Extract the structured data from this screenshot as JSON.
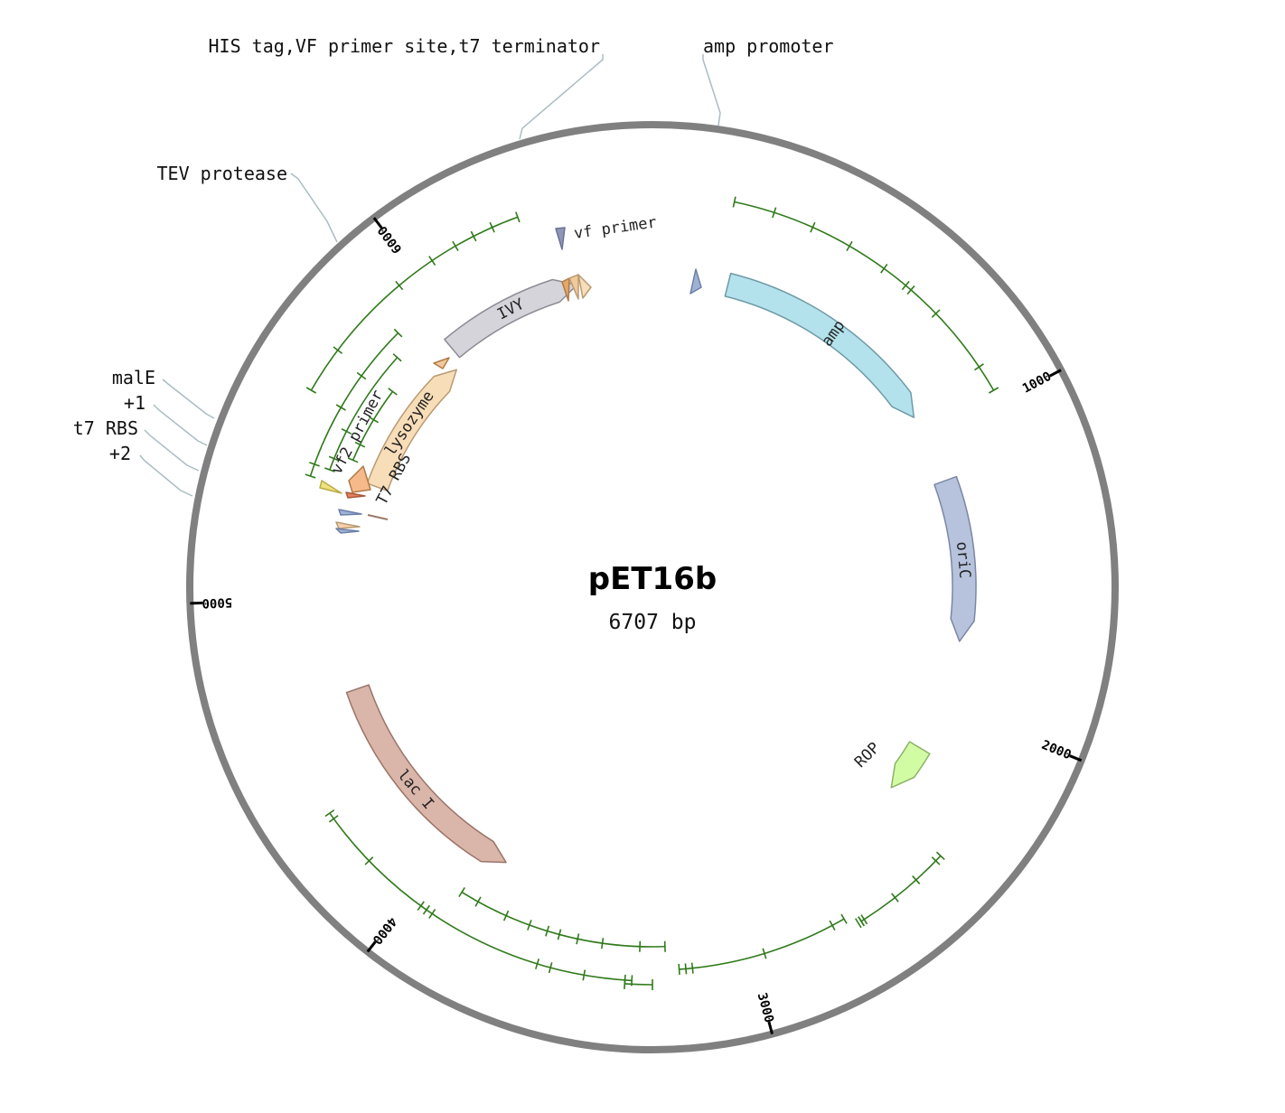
{
  "plasmid": {
    "name": "pET16b",
    "length_label": "6707 bp",
    "length": 6707
  },
  "colors": {
    "backbone": "#808080",
    "leader": "#aabdc2",
    "enzyme": "#2f7a1a",
    "amp": "#b3e2ec",
    "oriC": "#b7c3dc",
    "ROP": "#d2fca4",
    "lac_I": "#dab6aa",
    "IVY": "#d4d4da",
    "lysozyme": "#f7ddb8"
  },
  "ticks": [
    {
      "label": "1000",
      "angle": 62
    },
    {
      "label": "2000",
      "angle": 112
    },
    {
      "label": "3000",
      "angle": 165
    },
    {
      "label": "4000",
      "angle": 218
    },
    {
      "label": "5000",
      "angle": 268
    },
    {
      "label": "6000",
      "angle": 323
    }
  ],
  "external_labels": [
    {
      "text": "HIS tag,VF primer site,t7 terminator"
    },
    {
      "text": "amp promoter"
    },
    {
      "text": "TEV protease"
    },
    {
      "text": "malE"
    },
    {
      "text": "+1"
    },
    {
      "text": "t7 RBS"
    },
    {
      "text": "+2"
    }
  ],
  "features": [
    {
      "label": "amp",
      "color": "#b3e2ec",
      "stroke": "#6f9aa6",
      "a1": 14,
      "a2": 57,
      "dir": 1,
      "r_out": 358,
      "r_in": 332
    },
    {
      "label": "oriC",
      "color": "#b7c3dc",
      "stroke": "#7b87a4",
      "a1": 70,
      "a2": 100,
      "dir": 1,
      "r_out": 358,
      "r_in": 332
    },
    {
      "label": "ROP",
      "color": "#d2fca4",
      "stroke": "#8bb266",
      "a1": 121,
      "a2": 130,
      "dir": 1,
      "r_out": 358,
      "r_in": 332
    },
    {
      "label": "lac I",
      "color": "#dab6aa",
      "stroke": "#9a7468",
      "a1": 208,
      "a2": 251,
      "dir": -1,
      "r_out": 358,
      "r_in": 332
    },
    {
      "label": "lysozyme",
      "color": "#f7ddb8",
      "stroke": "#b89a72",
      "a1": 290,
      "a2": 318,
      "dir": 1,
      "r_out": 336,
      "r_in": 312
    },
    {
      "label": "IVY",
      "color": "#d4d4da",
      "stroke": "#8c8c96",
      "a1": 320,
      "a2": 346,
      "dir": 1,
      "r_out": 358,
      "r_in": 332
    }
  ],
  "small_features": [
    {
      "label": "vf primer"
    },
    {
      "label": "vf2 primer"
    },
    {
      "label": "T7 RBS"
    }
  ]
}
